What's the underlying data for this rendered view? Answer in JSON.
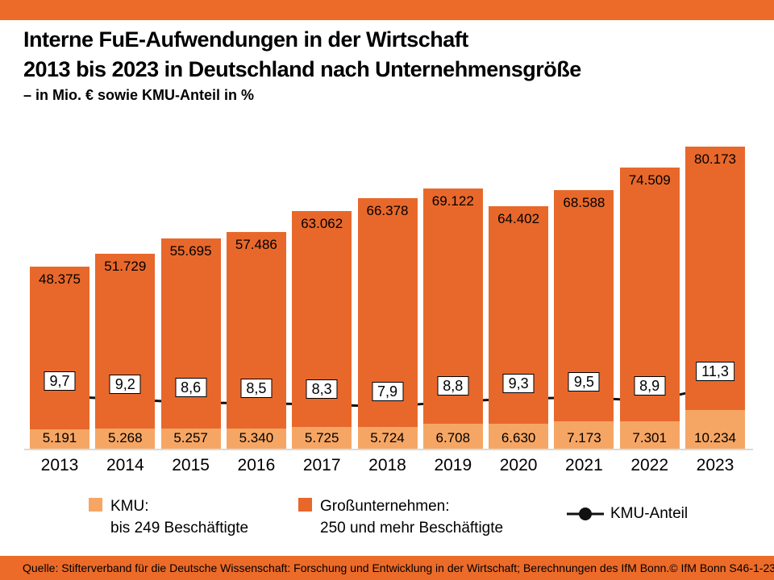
{
  "header": {
    "title_line1": "Interne FuE-Aufwendungen in der Wirtschaft",
    "title_line2": "2013 bis 2023 in Deutschland nach Unternehmensgröße",
    "subtitle": "– in Mio. € sowie KMU-Anteil in %"
  },
  "colors": {
    "accent": "#EC6B29",
    "gross_bar": "#E8682B",
    "kmu_bar": "#F6A664",
    "line": "#111111",
    "baseline": "#D9D9D9"
  },
  "chart_data": {
    "type": "bar",
    "subtype": "stacked-bar-with-line",
    "title": "Interne FuE-Aufwendungen in der Wirtschaft 2013 bis 2023 in Deutschland nach Unternehmensgröße",
    "xlabel": "",
    "ylabel": "Mio. €",
    "value_axis_visible": false,
    "grid": false,
    "legend_position": "bottom",
    "categories": [
      "2013",
      "2014",
      "2015",
      "2016",
      "2017",
      "2018",
      "2019",
      "2020",
      "2021",
      "2022",
      "2023"
    ],
    "totals": [
      48375,
      51729,
      55695,
      57486,
      63062,
      66378,
      69122,
      64402,
      68588,
      74509,
      80173
    ],
    "total_labels": [
      "48.375",
      "51.729",
      "55.695",
      "57.486",
      "63.062",
      "66.378",
      "69.122",
      "64.402",
      "68.588",
      "74.509",
      "80.173"
    ],
    "series": [
      {
        "name": "KMU: bis 249 Beschäftigte",
        "role": "bottom-segment",
        "values": [
          5191,
          5268,
          5257,
          5340,
          5725,
          5724,
          6708,
          6630,
          7173,
          7301,
          10234
        ],
        "labels": [
          "5.191",
          "5.268",
          "5.257",
          "5.340",
          "5.725",
          "5.724",
          "6.708",
          "6.630",
          "7.173",
          "7.301",
          "10.234"
        ]
      },
      {
        "name": "Großunternehmen: 250 und mehr Beschäftigte",
        "role": "top-segment-to-total",
        "values": [
          43184,
          46461,
          50438,
          52146,
          57337,
          60654,
          62414,
          57772,
          61415,
          67208,
          69939
        ]
      },
      {
        "name": "KMU-Anteil",
        "role": "line",
        "unit": "%",
        "values": [
          9.7,
          9.2,
          8.6,
          8.5,
          8.3,
          7.9,
          8.8,
          9.3,
          9.5,
          8.9,
          11.3
        ],
        "labels": [
          "9,7",
          "9,2",
          "8,6",
          "8,5",
          "8,3",
          "7,9",
          "8,8",
          "9,3",
          "9,5",
          "8,9",
          "11,3"
        ]
      }
    ]
  },
  "legend": {
    "kmu_line1": "KMU:",
    "kmu_line2": "bis 249 Beschäftigte",
    "gross_line1": "Großunternehmen:",
    "gross_line2": "250 und mehr Beschäftigte",
    "share_label": "KMU-Anteil"
  },
  "footer": {
    "source": "Quelle: Stifterverband für die Deutsche Wissenschaft: Forschung und Entwicklung in der Wirtschaft; Berechnungen des IfM Bonn.",
    "copyright": "© IfM Bonn  S46-1-23"
  }
}
